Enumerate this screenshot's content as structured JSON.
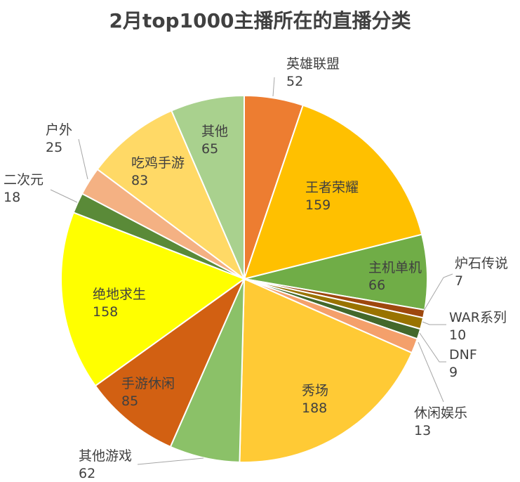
{
  "chart_data": {
    "type": "pie",
    "title": "2月top1000主播所在的直播分类",
    "slices": [
      {
        "label": "英雄联盟",
        "value": 52,
        "color": "#ED7D31"
      },
      {
        "label": "王者荣耀",
        "value": 159,
        "color": "#FFC000"
      },
      {
        "label": "主机单机",
        "value": 66,
        "color": "#70AD47"
      },
      {
        "label": "炉石传说",
        "value": 7,
        "color": "#9E480E"
      },
      {
        "label": "WAR系列",
        "value": 10,
        "color": "#997300"
      },
      {
        "label": "DNF",
        "value": 9,
        "color": "#43682B"
      },
      {
        "label": "休闲娱乐",
        "value": 13,
        "color": "#F4A06B"
      },
      {
        "label": "秀场",
        "value": 188,
        "color": "#FFCA35"
      },
      {
        "label": "其他游戏",
        "value": 62,
        "color": "#8BC168"
      },
      {
        "label": "手游休闲",
        "value": 85,
        "color": "#D26012"
      },
      {
        "label": "绝地求生",
        "value": 158,
        "color": "#FFFF00"
      },
      {
        "label": "二次元",
        "value": 18,
        "color": "#5A8A38"
      },
      {
        "label": "户外",
        "value": 25,
        "color": "#F4B183"
      },
      {
        "label": "吃鸡手游",
        "value": 83,
        "color": "#FFD966"
      },
      {
        "label": "其他",
        "value": 65,
        "color": "#A9D18E"
      }
    ]
  }
}
